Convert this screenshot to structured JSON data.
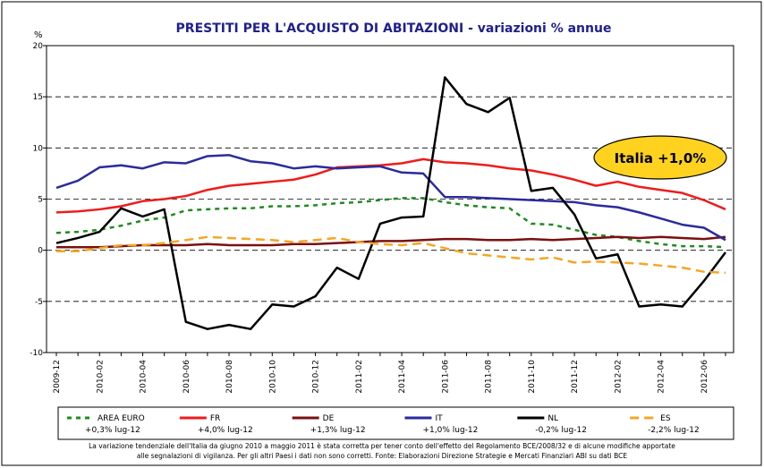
{
  "chart_data": {
    "type": "line",
    "title": "PRESTITI PER L'ACQUISTO DI ABITAZIONI - variazioni % annue",
    "y_label": "%",
    "annotation": "Italia +1,0%",
    "footnote": [
      "La variazione tendenziale dell'Italia da giugno 2010 a maggio 2011 è stata corretta per tener conto dell'effetto del Regolamento BCE/2008/32 e di alcune modifiche apportate",
      "alle segnalazioni di vigilanza. Per gli altri Paesi i dati non sono corretti. Fonte: Elaborazioni Direzione Strategie e Mercati Finanziari ABI su dati BCE"
    ],
    "categories": [
      "2009-12",
      null,
      "2010-02",
      null,
      "2010-04",
      null,
      "2010-06",
      null,
      "2010-08",
      null,
      "2010-10",
      null,
      "2010-12",
      null,
      "2011-02",
      null,
      "2011-04",
      null,
      "2011-06",
      null,
      "2011-08",
      null,
      "2011-10",
      null,
      "2011-12",
      null,
      "2012-02",
      null,
      "2012-04",
      null,
      "2012-06",
      null
    ],
    "ylim": [
      -10,
      20
    ],
    "yticks": [
      -10,
      -5,
      0,
      5,
      10,
      15,
      20
    ],
    "grid": true,
    "series": [
      {
        "name": "AREA EURO",
        "note": "+0,3% lug-12",
        "color": "#1e8c1e",
        "dash": "dashdot",
        "values": [
          1.7,
          1.8,
          2.0,
          2.4,
          2.9,
          3.2,
          3.9,
          4.0,
          4.1,
          4.1,
          4.3,
          4.3,
          4.4,
          4.6,
          4.7,
          4.9,
          5.1,
          5.1,
          4.7,
          4.4,
          4.2,
          4.1,
          2.6,
          2.5,
          2.0,
          1.5,
          1.3,
          0.9,
          0.6,
          0.4,
          0.4,
          0.3
        ]
      },
      {
        "name": "FR",
        "note": "+4,0% lug-12",
        "color": "#ee1c1c",
        "dash": "solid",
        "values": [
          3.7,
          3.8,
          4.0,
          4.3,
          4.8,
          5.0,
          5.3,
          5.9,
          6.3,
          6.5,
          6.7,
          6.9,
          7.4,
          8.1,
          8.2,
          8.3,
          8.5,
          8.9,
          8.6,
          8.5,
          8.3,
          8.0,
          7.8,
          7.4,
          6.9,
          6.3,
          6.7,
          6.2,
          5.9,
          5.6,
          4.9,
          4.0
        ]
      },
      {
        "name": "DE",
        "note": "+1,3% lug-12",
        "color": "#7a1010",
        "dash": "solid",
        "values": [
          0.3,
          0.3,
          0.3,
          0.4,
          0.5,
          0.5,
          0.5,
          0.6,
          0.5,
          0.5,
          0.5,
          0.6,
          0.6,
          0.7,
          0.8,
          0.9,
          0.9,
          1.0,
          1.1,
          1.1,
          1.0,
          1.0,
          1.1,
          1.0,
          1.1,
          1.2,
          1.3,
          1.2,
          1.3,
          1.2,
          1.1,
          1.3
        ]
      },
      {
        "name": "IT",
        "note": "+1,0% lug-12",
        "color": "#2b2b9c",
        "dash": "solid",
        "values": [
          6.1,
          6.8,
          8.1,
          8.3,
          8.0,
          8.6,
          8.5,
          9.2,
          9.3,
          8.7,
          8.5,
          8.0,
          8.2,
          8.0,
          8.1,
          8.2,
          7.6,
          7.5,
          5.2,
          5.2,
          5.1,
          5.0,
          4.9,
          4.8,
          4.7,
          4.4,
          4.2,
          3.7,
          3.1,
          2.5,
          2.2,
          1.0
        ]
      },
      {
        "name": "NL",
        "note": "-0,2% lug-12",
        "color": "#000000",
        "dash": "solid",
        "values": [
          0.7,
          1.2,
          1.8,
          4.1,
          3.3,
          4.0,
          -7.0,
          -7.7,
          -7.3,
          -7.7,
          -5.3,
          -5.5,
          -4.5,
          -1.7,
          -2.8,
          2.6,
          3.2,
          3.3,
          16.9,
          14.3,
          13.5,
          14.9,
          5.8,
          6.1,
          3.5,
          -0.8,
          -0.4,
          -5.5,
          -5.3,
          -5.5,
          -3.0,
          -0.2
        ]
      },
      {
        "name": "ES",
        "note": "-2,2% lug-12",
        "color": "#f5a623",
        "dash": "dash",
        "values": [
          -0.1,
          -0.1,
          0.2,
          0.5,
          0.5,
          0.7,
          1.0,
          1.3,
          1.2,
          1.1,
          1.0,
          0.8,
          1.0,
          1.2,
          0.8,
          0.6,
          0.5,
          0.7,
          0.2,
          -0.3,
          -0.5,
          -0.7,
          -0.9,
          -0.7,
          -1.2,
          -1.1,
          -1.2,
          -1.3,
          -1.5,
          -1.7,
          -2.1,
          -2.2
        ]
      }
    ]
  }
}
